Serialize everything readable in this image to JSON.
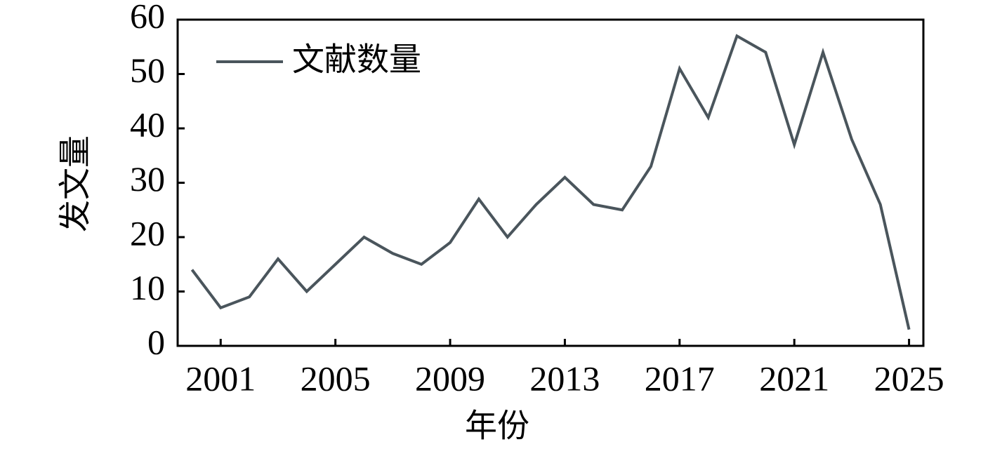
{
  "chart_data": {
    "type": "line",
    "x_label": "年份",
    "y_label": "发文量",
    "x": [
      2000,
      2001,
      2002,
      2003,
      2004,
      2005,
      2006,
      2007,
      2008,
      2009,
      2010,
      2011,
      2012,
      2013,
      2014,
      2015,
      2016,
      2017,
      2018,
      2019,
      2020,
      2021,
      2022,
      2023,
      2024,
      2025
    ],
    "series": [
      {
        "name": "文献数量",
        "color": "#4a555c",
        "values": [
          14,
          7,
          9,
          16,
          10,
          15,
          20,
          17,
          15,
          19,
          27,
          20,
          26,
          31,
          26,
          25,
          33,
          51,
          42,
          57,
          54,
          37,
          54,
          38,
          26,
          3
        ]
      }
    ],
    "xlim": [
      1999.5,
      2025.5
    ],
    "xticks": [
      2001,
      2005,
      2009,
      2013,
      2017,
      2021,
      2025
    ],
    "ylim": [
      0,
      60
    ],
    "yticks": [
      0,
      10,
      20,
      30,
      40,
      50,
      60
    ],
    "legend": "upper left"
  }
}
